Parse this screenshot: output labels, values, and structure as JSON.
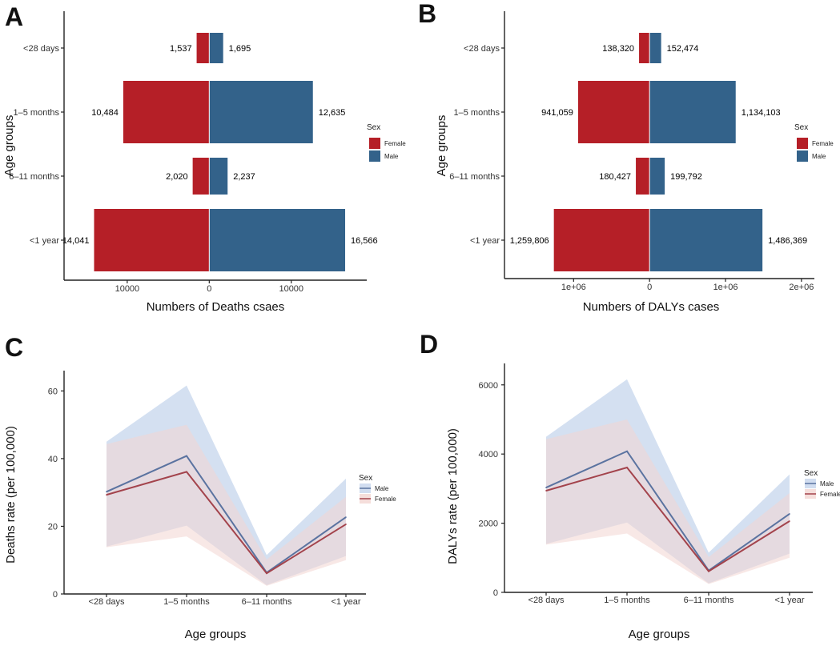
{
  "colors": {
    "female": "#B51F27",
    "male": "#33628A",
    "female_line": "#A3434C",
    "male_line": "#5B73A0",
    "female_band": "#F3D6D2",
    "male_band": "#C6D5EC"
  },
  "chart_data": [
    {
      "panel": "A",
      "type": "bar",
      "orientation": "horizontal-diverging",
      "xlabel": "Numbers of Deaths csaes",
      "ylabel": "Age groups",
      "categories": [
        "<28 days",
        "1–5 months",
        "6–11 months",
        "<1 year"
      ],
      "series": [
        {
          "name": "Female",
          "values": [
            1537,
            10484,
            2020,
            14041
          ],
          "labels": [
            "1,537",
            "10,484",
            "2,020",
            "14,041"
          ]
        },
        {
          "name": "Male",
          "values": [
            1695,
            12635,
            2237,
            16566
          ],
          "labels": [
            "1,695",
            "12,635",
            "2,237",
            "16,566"
          ]
        }
      ],
      "xlim": [
        -17700,
        19200
      ],
      "xticks": [
        {
          "value": -10000,
          "label": "10000"
        },
        {
          "value": 0,
          "label": "0"
        },
        {
          "value": 10000,
          "label": "10000"
        }
      ],
      "legend": {
        "title": "Sex",
        "entries": [
          "Female",
          "Male"
        ],
        "position": "right"
      }
    },
    {
      "panel": "B",
      "type": "bar",
      "orientation": "horizontal-diverging",
      "xlabel": "Numbers of DALYs cases",
      "ylabel": "Age groups",
      "categories": [
        "<28 days",
        "1–5 months",
        "6–11 months",
        "<1 year"
      ],
      "series": [
        {
          "name": "Female",
          "values": [
            138320,
            941059,
            180427,
            1259806
          ],
          "labels": [
            "138,320",
            "941,059",
            "180,427",
            "1,259,806"
          ]
        },
        {
          "name": "Male",
          "values": [
            152474,
            1134103,
            199792,
            1486369
          ],
          "labels": [
            "152,474",
            "1,134,103",
            "199,792",
            "1,486,369"
          ]
        }
      ],
      "xlim": [
        -1910000,
        2170000
      ],
      "xticks": [
        {
          "value": -1000000,
          "label": "1e+06"
        },
        {
          "value": 0,
          "label": "0"
        },
        {
          "value": 1000000,
          "label": "1e+06"
        },
        {
          "value": 2000000,
          "label": "2e+06"
        }
      ],
      "legend": {
        "title": "Sex",
        "entries": [
          "Female",
          "Male"
        ],
        "position": "right"
      }
    },
    {
      "panel": "C",
      "type": "line",
      "xlabel": "Age groups",
      "ylabel": "Deaths rate (per 100,000)",
      "categories": [
        "<28 days",
        "1–5 months",
        "6–11 months",
        "<1 year"
      ],
      "series": [
        {
          "name": "Male",
          "values": [
            30.2,
            40.8,
            6.3,
            22.7
          ],
          "lower": [
            14.0,
            20.2,
            2.6,
            11.2
          ],
          "upper": [
            45.0,
            61.6,
            11.5,
            34.1
          ]
        },
        {
          "name": "Female",
          "values": [
            29.3,
            36.1,
            6.1,
            20.6
          ],
          "lower": [
            13.8,
            17.0,
            2.4,
            10.0
          ],
          "upper": [
            44.3,
            50.0,
            10.2,
            28.7
          ]
        }
      ],
      "ylim": [
        0,
        66
      ],
      "yticks": [
        0,
        20,
        40,
        60
      ],
      "legend": {
        "title": "Sex",
        "entries": [
          "Male",
          "Female"
        ],
        "position": "right"
      }
    },
    {
      "panel": "D",
      "type": "line",
      "xlabel": "Age groups",
      "ylabel": "DALYs rate (per 100,000)",
      "categories": [
        "<28 days",
        "1–5 months",
        "6–11 months",
        "<1 year"
      ],
      "series": [
        {
          "name": "Male",
          "values": [
            3030,
            4080,
            630,
            2270
          ],
          "lower": [
            1400,
            2020,
            260,
            1120
          ],
          "upper": [
            4500,
            6160,
            1150,
            3410
          ]
        },
        {
          "name": "Female",
          "values": [
            2940,
            3610,
            610,
            2060
          ],
          "lower": [
            1380,
            1700,
            240,
            1000
          ],
          "upper": [
            4430,
            5000,
            1020,
            2870
          ]
        }
      ],
      "ylim": [
        0,
        6620
      ],
      "yticks": [
        0,
        2000,
        4000,
        6000
      ],
      "legend": {
        "title": "Sex",
        "entries": [
          "Male",
          "Female"
        ],
        "position": "right"
      }
    }
  ]
}
